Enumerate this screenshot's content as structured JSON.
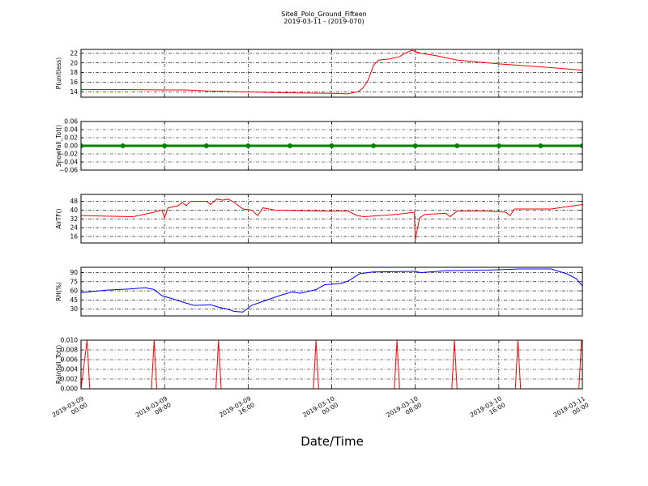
{
  "chart_data": [
    {
      "type": "line",
      "title": "Site8_Polo_Ground_Fifteen",
      "subtitle": "2019-03-11 - (2019-070)",
      "ylabel": "P(unitless)",
      "xlim": [
        "2019-03-09 00:00",
        "2019-03-11 00:00"
      ],
      "ylim": [
        12.9,
        22.8
      ],
      "yticks": [
        14,
        16,
        18,
        20,
        22
      ],
      "grid": true,
      "x": [
        "2019-03-09 00:00",
        "2019-03-09 04:00",
        "2019-03-09 08:00",
        "2019-03-09 10:00",
        "2019-03-09 12:00",
        "2019-03-09 16:00",
        "2019-03-09 20:00",
        "2019-03-10 00:00",
        "2019-03-10 01:30",
        "2019-03-10 02:30",
        "2019-03-10 03:00",
        "2019-03-10 03:30",
        "2019-03-10 04:00",
        "2019-03-10 04:30",
        "2019-03-10 05:30",
        "2019-03-10 06:30",
        "2019-03-10 07:00",
        "2019-03-10 07:40",
        "2019-03-10 08:30",
        "2019-03-10 10:00",
        "2019-03-10 12:00",
        "2019-03-10 16:00",
        "2019-03-10 20:00",
        "2019-03-11 00:00"
      ],
      "series": [
        {
          "color": "red",
          "values": [
            14.5,
            14.5,
            14.4,
            14.4,
            14.2,
            14.0,
            13.8,
            13.7,
            13.6,
            14.0,
            14.8,
            16.5,
            19.5,
            20.6,
            20.8,
            21.3,
            22.0,
            22.6,
            22.0,
            21.5,
            20.6,
            19.8,
            19.2,
            18.5
          ]
        }
      ]
    },
    {
      "type": "line",
      "ylabel": "Snowfall_Tot()",
      "markers": true,
      "xlim": [
        "2019-03-09 00:00",
        "2019-03-11 00:00"
      ],
      "ylim": [
        -0.06,
        0.06
      ],
      "yticks": [
        {
          "value": -0.06,
          "label": "−0.06"
        },
        {
          "value": -0.04,
          "label": "−0.04"
        },
        {
          "value": -0.02,
          "label": "−0.02"
        },
        {
          "value": 0,
          "label": "0.00"
        },
        {
          "value": 0.02,
          "label": "0.02"
        },
        {
          "value": 0.04,
          "label": "0.04"
        },
        {
          "value": 0.06,
          "label": "0.06"
        }
      ],
      "grid": true,
      "x": [
        "2019-03-09 00:00",
        "2019-03-09 04:00",
        "2019-03-09 08:00",
        "2019-03-09 12:00",
        "2019-03-09 16:00",
        "2019-03-09 20:00",
        "2019-03-10 00:00",
        "2019-03-10 04:00",
        "2019-03-10 08:00",
        "2019-03-10 12:00",
        "2019-03-10 16:00",
        "2019-03-10 20:00",
        "2019-03-11 00:00"
      ],
      "series": [
        {
          "color": "green",
          "values": [
            0,
            0,
            0,
            0,
            0,
            0,
            0,
            0,
            0,
            0,
            0,
            0,
            0
          ]
        }
      ]
    },
    {
      "type": "line",
      "ylabel": "AirTF()",
      "xlim": [
        "2019-03-09 00:00",
        "2019-03-11 00:00"
      ],
      "ylim": [
        10.1,
        54.2
      ],
      "yticks": [
        16,
        24,
        32,
        40,
        48
      ],
      "grid": true,
      "x": [
        "2019-03-09 00:00",
        "2019-03-09 05:00",
        "2019-03-09 07:00",
        "2019-03-09 07:45",
        "2019-03-09 08:00",
        "2019-03-09 08:20",
        "2019-03-09 09:20",
        "2019-03-09 09:40",
        "2019-03-09 10:05",
        "2019-03-09 10:30",
        "2019-03-09 12:00",
        "2019-03-09 12:25",
        "2019-03-09 13:00",
        "2019-03-09 13:35",
        "2019-03-09 14:05",
        "2019-03-09 14:40",
        "2019-03-09 15:30",
        "2019-03-09 16:20",
        "2019-03-09 16:55",
        "2019-03-09 17:25",
        "2019-03-09 18:35",
        "2019-03-09 23:20",
        "2019-03-10 01:35",
        "2019-03-10 02:25",
        "2019-03-10 03:05",
        "2019-03-10 06:10",
        "2019-03-10 07:55",
        "2019-03-10 08:00",
        "2019-03-10 08:25",
        "2019-03-10 08:55",
        "2019-03-10 10:55",
        "2019-03-10 11:20",
        "2019-03-10 12:00",
        "2019-03-10 14:50",
        "2019-03-10 16:40",
        "2019-03-10 17:05",
        "2019-03-10 17:30",
        "2019-03-10 21:00",
        "2019-03-11 00:00"
      ],
      "series": [
        {
          "color": "red",
          "values": [
            35,
            34,
            38,
            40,
            33,
            42,
            44,
            47,
            44,
            48,
            48,
            45,
            50,
            49,
            50,
            47,
            41,
            40,
            35,
            42,
            40,
            39,
            39,
            35,
            34,
            36,
            38,
            13,
            33,
            36,
            37,
            34,
            39,
            39,
            38,
            35,
            41,
            41,
            45
          ]
        }
      ]
    },
    {
      "type": "line",
      "ylabel": "RH(%)",
      "xlim": [
        "2019-03-09 00:00",
        "2019-03-11 00:00"
      ],
      "ylim": [
        18.7,
        98.7
      ],
      "yticks": [
        30,
        45,
        60,
        75,
        90
      ],
      "grid": true,
      "x": [
        "2019-03-09 00:00",
        "2019-03-09 02:20",
        "2019-03-09 04:40",
        "2019-03-09 06:10",
        "2019-03-09 07:00",
        "2019-03-09 07:45",
        "2019-03-09 08:55",
        "2019-03-09 10:00",
        "2019-03-09 10:50",
        "2019-03-09 12:25",
        "2019-03-09 13:10",
        "2019-03-09 14:00",
        "2019-03-09 14:40",
        "2019-03-09 15:30",
        "2019-03-09 16:20",
        "2019-03-09 17:50",
        "2019-03-09 19:00",
        "2019-03-09 20:10",
        "2019-03-09 21:00",
        "2019-03-09 22:30",
        "2019-03-09 23:20",
        "2019-03-10 00:50",
        "2019-03-10 01:35",
        "2019-03-10 02:40",
        "2019-03-10 03:55",
        "2019-03-10 07:50",
        "2019-03-10 08:35",
        "2019-03-10 10:55",
        "2019-03-10 14:50",
        "2019-03-10 17:55",
        "2019-03-10 21:00",
        "2019-03-10 22:30",
        "2019-03-10 23:25",
        "2019-03-11 00:00"
      ],
      "series": [
        {
          "color": "blue",
          "values": [
            57,
            61,
            63,
            65,
            62,
            52,
            46,
            40,
            36,
            37,
            33,
            30,
            26,
            25,
            36,
            45,
            52,
            58,
            56,
            62,
            70,
            72,
            76,
            88,
            91,
            92,
            90,
            93,
            94,
            96,
            96,
            88,
            80,
            68
          ]
        }
      ]
    },
    {
      "type": "line",
      "ylabel": "Rainfall_Tot()",
      "xlabel": "Date/Time",
      "xlim": [
        "2019-03-09 00:00",
        "2019-03-11 00:00"
      ],
      "xticks": [
        "2019-03-09 00:00",
        "2019-03-09 08:00",
        "2019-03-09 16:00",
        "2019-03-10 00:00",
        "2019-03-10 08:00",
        "2019-03-10 16:00",
        "2019-03-11 00:00"
      ],
      "ylim": [
        0,
        0.01
      ],
      "yticks": [
        {
          "value": 0,
          "label": "0.000"
        },
        {
          "value": 0.002,
          "label": "0.002"
        },
        {
          "value": 0.004,
          "label": "0.004"
        },
        {
          "value": 0.006,
          "label": "0.006"
        },
        {
          "value": 0.008,
          "label": "0.008"
        },
        {
          "value": 0.01,
          "label": "0.010"
        }
      ],
      "grid": true,
      "x": [
        "2019-03-09 00:00",
        "2019-03-09 00:35",
        "2019-03-09 00:50",
        "2019-03-09 06:45",
        "2019-03-09 07:00",
        "2019-03-09 07:15",
        "2019-03-09 12:55",
        "2019-03-09 13:10",
        "2019-03-09 13:25",
        "2019-03-09 22:15",
        "2019-03-09 22:30",
        "2019-03-09 22:45",
        "2019-03-10 06:00",
        "2019-03-10 06:15",
        "2019-03-10 06:30",
        "2019-03-10 11:30",
        "2019-03-10 11:45",
        "2019-03-10 12:00",
        "2019-03-10 17:35",
        "2019-03-10 17:50",
        "2019-03-10 18:05",
        "2019-03-10 23:40",
        "2019-03-10 23:55"
      ],
      "series": [
        {
          "color": "red",
          "values": [
            0,
            0.01,
            0,
            0,
            0.01,
            0,
            0,
            0.01,
            0,
            0,
            0.01,
            0,
            0,
            0.01,
            0,
            0,
            0.01,
            0,
            0,
            0.01,
            0,
            0,
            0.01
          ]
        }
      ]
    }
  ]
}
